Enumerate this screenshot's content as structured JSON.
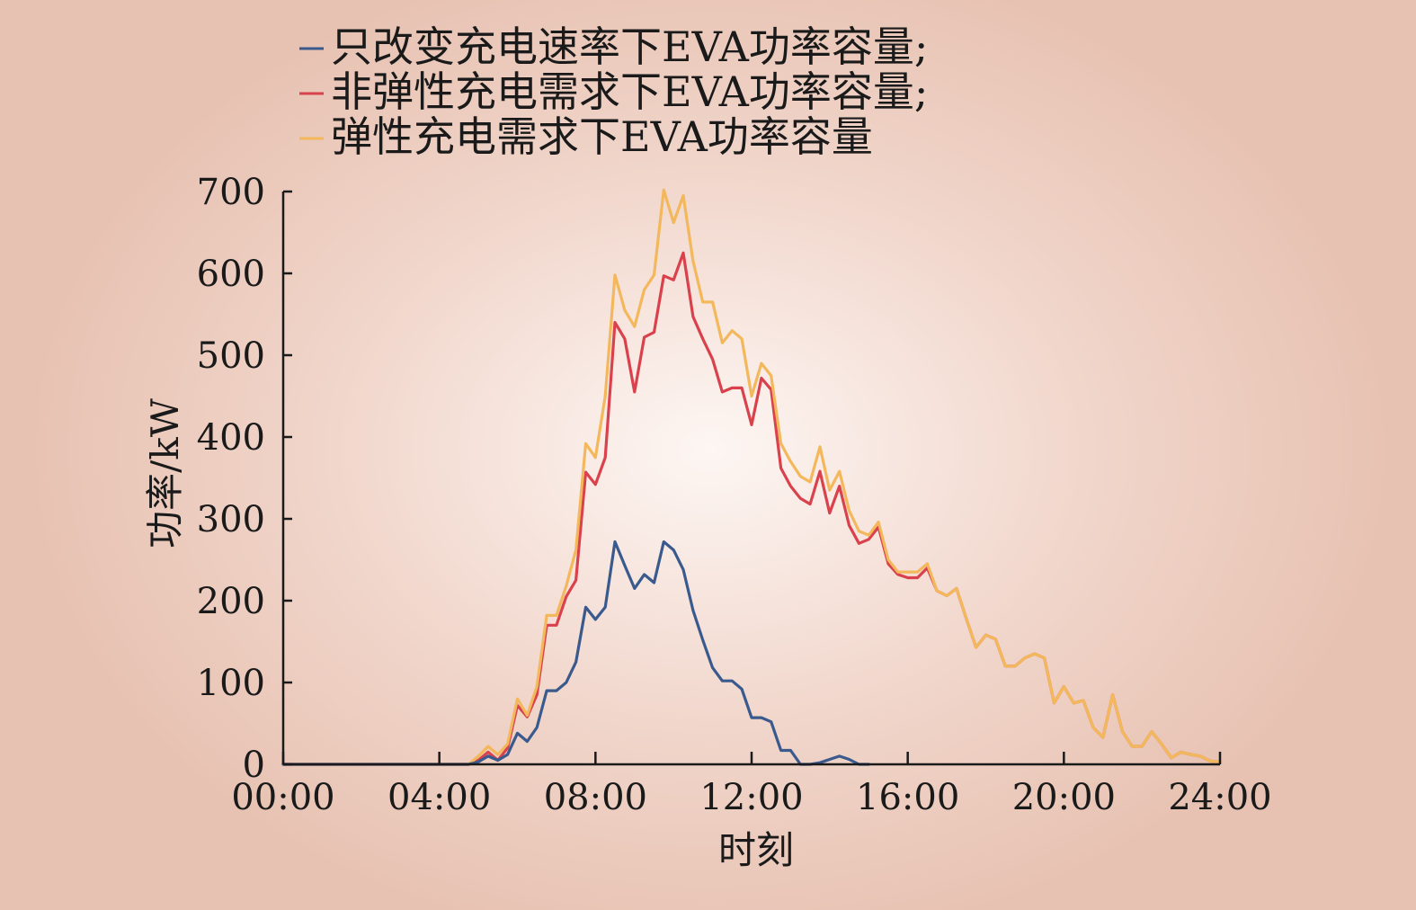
{
  "chart_data": {
    "type": "line",
    "xlabel": "时刻",
    "ylabel": "功率/kW",
    "xlim": [
      0,
      24
    ],
    "ylim": [
      0,
      700
    ],
    "x_ticks": [
      {
        "value": 0,
        "label": "00:00"
      },
      {
        "value": 4,
        "label": "04:00"
      },
      {
        "value": 8,
        "label": "08:00"
      },
      {
        "value": 12,
        "label": "12:00"
      },
      {
        "value": 16,
        "label": "16:00"
      },
      {
        "value": 20,
        "label": "20:00"
      },
      {
        "value": 24,
        "label": "24:00"
      }
    ],
    "y_ticks": [
      {
        "value": 0,
        "label": "0"
      },
      {
        "value": 100,
        "label": "100"
      },
      {
        "value": 200,
        "label": "200"
      },
      {
        "value": 300,
        "label": "300"
      },
      {
        "value": 400,
        "label": "400"
      },
      {
        "value": 500,
        "label": "500"
      },
      {
        "value": 600,
        "label": "600"
      },
      {
        "value": 700,
        "label": "700"
      }
    ],
    "grid": false,
    "legend_position": "top",
    "series": [
      {
        "name": "只改变充电速率下EVA功率容量;",
        "color": "#3a5a8e",
        "points": [
          [
            0,
            0
          ],
          [
            4,
            0
          ],
          [
            4.75,
            0
          ],
          [
            5,
            3
          ],
          [
            5.25,
            10
          ],
          [
            5.5,
            5
          ],
          [
            5.75,
            12
          ],
          [
            6,
            38
          ],
          [
            6.25,
            28
          ],
          [
            6.5,
            45
          ],
          [
            6.75,
            90
          ],
          [
            7,
            90
          ],
          [
            7.25,
            100
          ],
          [
            7.5,
            125
          ],
          [
            7.75,
            192
          ],
          [
            8,
            177
          ],
          [
            8.25,
            192
          ],
          [
            8.5,
            272
          ],
          [
            8.75,
            243
          ],
          [
            9,
            215
          ],
          [
            9.25,
            232
          ],
          [
            9.5,
            222
          ],
          [
            9.75,
            272
          ],
          [
            10,
            262
          ],
          [
            10.25,
            238
          ],
          [
            10.5,
            188
          ],
          [
            10.75,
            152
          ],
          [
            11,
            118
          ],
          [
            11.25,
            102
          ],
          [
            11.5,
            102
          ],
          [
            11.75,
            92
          ],
          [
            12,
            57
          ],
          [
            12.25,
            57
          ],
          [
            12.5,
            52
          ],
          [
            12.75,
            17
          ],
          [
            13,
            17
          ],
          [
            13.25,
            0
          ],
          [
            13.5,
            0
          ],
          [
            13.75,
            2
          ],
          [
            14,
            6
          ],
          [
            14.25,
            10
          ],
          [
            14.5,
            6
          ],
          [
            14.75,
            0
          ],
          [
            15,
            0
          ]
        ]
      },
      {
        "name": "非弹性充电需求下EVA功率容量;",
        "color": "#d9424c",
        "points": [
          [
            0,
            0
          ],
          [
            4,
            0
          ],
          [
            4.75,
            0
          ],
          [
            5,
            5
          ],
          [
            5.25,
            15
          ],
          [
            5.5,
            5
          ],
          [
            5.75,
            20
          ],
          [
            6,
            72
          ],
          [
            6.25,
            58
          ],
          [
            6.5,
            85
          ],
          [
            6.75,
            170
          ],
          [
            7,
            170
          ],
          [
            7.25,
            205
          ],
          [
            7.5,
            225
          ],
          [
            7.75,
            357
          ],
          [
            8,
            342
          ],
          [
            8.25,
            375
          ],
          [
            8.5,
            540
          ],
          [
            8.75,
            520
          ],
          [
            9,
            455
          ],
          [
            9.25,
            522
          ],
          [
            9.5,
            528
          ],
          [
            9.75,
            597
          ],
          [
            10,
            592
          ],
          [
            10.25,
            625
          ],
          [
            10.5,
            547
          ],
          [
            10.75,
            520
          ],
          [
            11,
            495
          ],
          [
            11.25,
            455
          ],
          [
            11.5,
            460
          ],
          [
            11.75,
            460
          ],
          [
            12,
            415
          ],
          [
            12.25,
            472
          ],
          [
            12.5,
            458
          ],
          [
            12.75,
            362
          ],
          [
            13,
            340
          ],
          [
            13.25,
            325
          ],
          [
            13.5,
            318
          ],
          [
            13.75,
            358
          ],
          [
            14,
            307
          ],
          [
            14.25,
            340
          ],
          [
            14.5,
            292
          ],
          [
            14.75,
            270
          ],
          [
            15,
            275
          ],
          [
            15.25,
            290
          ],
          [
            15.5,
            245
          ],
          [
            15.75,
            232
          ],
          [
            16,
            228
          ],
          [
            16.25,
            228
          ],
          [
            16.5,
            240
          ],
          [
            16.75,
            212
          ],
          [
            17,
            206
          ],
          [
            17.25,
            215
          ],
          [
            17.5,
            178
          ],
          [
            17.75,
            143
          ],
          [
            18,
            158
          ],
          [
            18.25,
            153
          ],
          [
            18.5,
            120
          ],
          [
            18.75,
            120
          ],
          [
            19,
            130
          ],
          [
            19.25,
            135
          ],
          [
            19.5,
            130
          ],
          [
            19.75,
            75
          ],
          [
            20,
            95
          ],
          [
            20.25,
            75
          ],
          [
            20.5,
            78
          ],
          [
            20.75,
            45
          ],
          [
            21,
            33
          ],
          [
            21.25,
            85
          ],
          [
            21.5,
            40
          ],
          [
            21.75,
            22
          ],
          [
            22,
            22
          ],
          [
            22.25,
            40
          ],
          [
            22.5,
            25
          ],
          [
            22.75,
            8
          ],
          [
            23,
            15
          ],
          [
            23.25,
            12
          ],
          [
            23.5,
            10
          ],
          [
            23.75,
            4
          ],
          [
            24,
            3
          ]
        ]
      },
      {
        "name": "弹性充电需求下EVA功率容量",
        "color": "#f3b85c",
        "points": [
          [
            0,
            0
          ],
          [
            4,
            0
          ],
          [
            4.75,
            0
          ],
          [
            5,
            10
          ],
          [
            5.25,
            22
          ],
          [
            5.5,
            12
          ],
          [
            5.75,
            25
          ],
          [
            6,
            80
          ],
          [
            6.25,
            60
          ],
          [
            6.5,
            95
          ],
          [
            6.75,
            182
          ],
          [
            7,
            182
          ],
          [
            7.25,
            218
          ],
          [
            7.5,
            262
          ],
          [
            7.75,
            392
          ],
          [
            8,
            375
          ],
          [
            8.25,
            450
          ],
          [
            8.5,
            598
          ],
          [
            8.75,
            555
          ],
          [
            9,
            535
          ],
          [
            9.25,
            580
          ],
          [
            9.5,
            598
          ],
          [
            9.75,
            702
          ],
          [
            10,
            662
          ],
          [
            10.25,
            695
          ],
          [
            10.5,
            615
          ],
          [
            10.75,
            565
          ],
          [
            11,
            565
          ],
          [
            11.25,
            515
          ],
          [
            11.5,
            530
          ],
          [
            11.75,
            520
          ],
          [
            12,
            450
          ],
          [
            12.25,
            490
          ],
          [
            12.5,
            475
          ],
          [
            12.75,
            392
          ],
          [
            13,
            370
          ],
          [
            13.25,
            352
          ],
          [
            13.5,
            345
          ],
          [
            13.75,
            388
          ],
          [
            14,
            335
          ],
          [
            14.25,
            358
          ],
          [
            14.5,
            310
          ],
          [
            14.75,
            285
          ],
          [
            15,
            280
          ],
          [
            15.25,
            296
          ],
          [
            15.5,
            250
          ],
          [
            15.75,
            235
          ],
          [
            16,
            235
          ],
          [
            16.25,
            235
          ],
          [
            16.5,
            245
          ],
          [
            16.75,
            212
          ],
          [
            17,
            206
          ],
          [
            17.25,
            215
          ],
          [
            17.5,
            178
          ],
          [
            17.75,
            143
          ],
          [
            18,
            158
          ],
          [
            18.25,
            153
          ],
          [
            18.5,
            120
          ],
          [
            18.75,
            120
          ],
          [
            19,
            130
          ],
          [
            19.25,
            135
          ],
          [
            19.5,
            130
          ],
          [
            19.75,
            75
          ],
          [
            20,
            95
          ],
          [
            20.25,
            75
          ],
          [
            20.5,
            78
          ],
          [
            20.75,
            45
          ],
          [
            21,
            33
          ],
          [
            21.25,
            85
          ],
          [
            21.5,
            40
          ],
          [
            21.75,
            22
          ],
          [
            22,
            22
          ],
          [
            22.25,
            40
          ],
          [
            22.5,
            25
          ],
          [
            22.75,
            8
          ],
          [
            23,
            15
          ],
          [
            23.25,
            12
          ],
          [
            23.5,
            10
          ],
          [
            23.75,
            4
          ],
          [
            24,
            3
          ]
        ]
      }
    ]
  }
}
